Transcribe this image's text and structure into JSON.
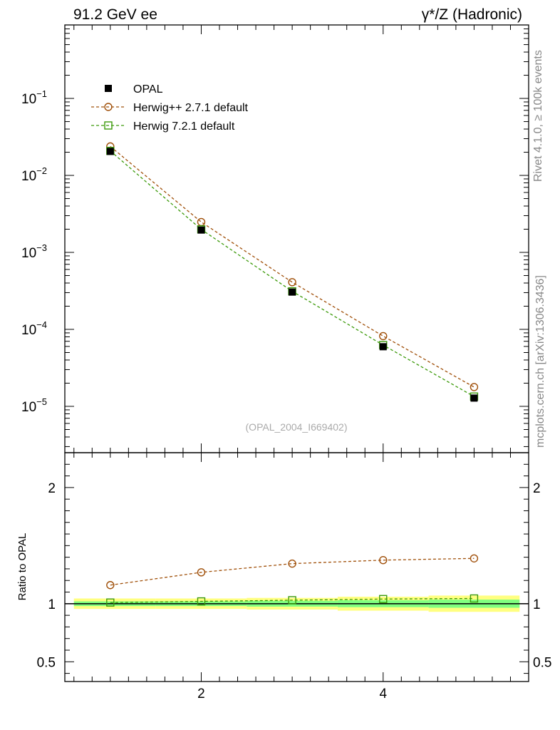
{
  "header": {
    "left_title": "91.2 GeV ee",
    "right_title": "γ*/Z (Hadronic)"
  },
  "side_labels": {
    "rivet": "Rivet 4.1.0, ≥ 100k events",
    "source": "mcplots.cern.ch [arXiv:1306.3436]"
  },
  "analysis_id": "(OPAL_2004_I669402)",
  "colors": {
    "data": "#000000",
    "herwigpp": "#a0500a",
    "herwig7": "#3c9a0a",
    "band_inner": "#80ff80",
    "band_outer": "#ffff80"
  },
  "chart_data": [
    {
      "type": "line",
      "panel": "main",
      "title": "",
      "xlabel": "",
      "ylabel": "",
      "yscale": "log",
      "xlim": [
        0.5,
        5.6
      ],
      "ylim": [
        2.5e-06,
        0.9
      ],
      "x": [
        1,
        2,
        3,
        4,
        5
      ],
      "y_ticks": [
        {
          "value": 0.1,
          "base": "10",
          "exp": "−1"
        },
        {
          "value": 0.01,
          "base": "10",
          "exp": "−2"
        },
        {
          "value": 0.001,
          "base": "10",
          "exp": "−3"
        },
        {
          "value": 0.0001,
          "base": "10",
          "exp": "−4"
        },
        {
          "value": 1e-05,
          "base": "10",
          "exp": "−5"
        }
      ],
      "legend_position": "top-left",
      "series": [
        {
          "name": "OPAL",
          "marker": "filled-square",
          "values": [
            0.0205,
            0.00195,
            0.000305,
            5.95e-05,
            1.28e-05
          ]
        },
        {
          "name": "Herwig++ 2.7.1 default",
          "marker": "open-circle",
          "style": "dashed",
          "values": [
            0.0238,
            0.00248,
            0.00041,
            8.18e-05,
            1.78e-05
          ]
        },
        {
          "name": "Herwig 7.2.1 default",
          "marker": "open-square",
          "style": "dashed",
          "values": [
            0.0208,
            0.00199,
            0.000312,
            6.25e-05,
            1.34e-05
          ]
        }
      ]
    },
    {
      "type": "line",
      "panel": "ratio",
      "title": "",
      "xlabel": "",
      "ylabel": "Ratio to OPAL",
      "xlim": [
        0.5,
        5.6
      ],
      "ylim": [
        0.33,
        2.3
      ],
      "x": [
        1,
        2,
        3,
        4,
        5
      ],
      "x_ticks": [
        {
          "value": 2,
          "label": "2"
        },
        {
          "value": 4,
          "label": "4"
        }
      ],
      "y_ticks": [
        {
          "value": 2,
          "label": "2"
        },
        {
          "value": 1,
          "label": "1"
        },
        {
          "value": 0.5,
          "label": "0.5"
        }
      ],
      "bands": {
        "x_edges": [
          [
            0.6,
            1.5
          ],
          [
            1.5,
            2.5
          ],
          [
            2.5,
            3.5
          ],
          [
            3.5,
            4.5
          ],
          [
            4.5,
            5.5
          ]
        ],
        "inner": [
          [
            0.98,
            1.02
          ],
          [
            0.98,
            1.02
          ],
          [
            0.975,
            1.025
          ],
          [
            0.97,
            1.03
          ],
          [
            0.965,
            1.035
          ]
        ],
        "outer": [
          [
            0.955,
            1.045
          ],
          [
            0.955,
            1.045
          ],
          [
            0.95,
            1.05
          ],
          [
            0.94,
            1.06
          ],
          [
            0.93,
            1.07
          ]
        ]
      },
      "series": [
        {
          "name": "Herwig++ 2.7.1 default",
          "marker": "open-circle",
          "style": "dashed",
          "values": [
            1.16,
            1.27,
            1.345,
            1.375,
            1.39
          ]
        },
        {
          "name": "Herwig 7.2.1 default",
          "marker": "open-square",
          "style": "dashed",
          "values": [
            1.01,
            1.02,
            1.03,
            1.04,
            1.045
          ]
        }
      ]
    }
  ]
}
